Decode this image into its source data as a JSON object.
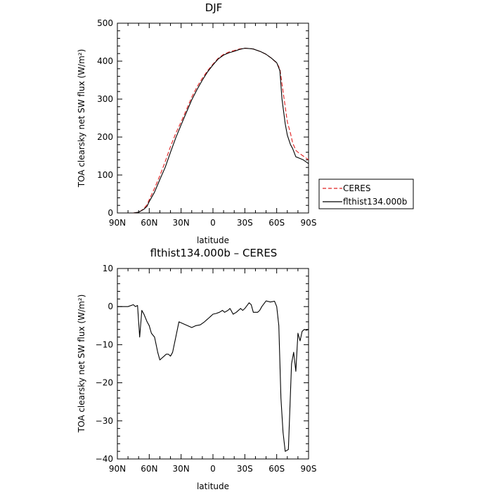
{
  "chart_data": [
    {
      "type": "line",
      "title": "DJF",
      "xlabel": "latitude",
      "ylabel": "TOA clearsky net SW flux (W/m²)",
      "xlim": [
        90,
        -90
      ],
      "ylim": [
        0,
        500
      ],
      "x_ticks": [
        90,
        60,
        30,
        0,
        -30,
        -60,
        -90
      ],
      "x_tick_labels": [
        "90N",
        "60N",
        "30N",
        "0",
        "30S",
        "60S",
        "90S"
      ],
      "y_ticks": [
        0,
        100,
        200,
        300,
        400,
        500
      ],
      "y_tick_labels": [
        "0",
        "100",
        "200",
        "300",
        "400",
        "500"
      ],
      "legend_position": "right",
      "series": [
        {
          "name": "CERES",
          "color": "#e02020",
          "dash": "dashed",
          "x": [
            75,
            70,
            68,
            65,
            62,
            60,
            55,
            50,
            45,
            40,
            35,
            30,
            25,
            20,
            15,
            10,
            5,
            0,
            -5,
            -10,
            -15,
            -20,
            -25,
            -30,
            -35,
            -38,
            -40,
            -45,
            -50,
            -55,
            -60,
            -63,
            -65,
            -68,
            -70,
            -73,
            -75,
            -78,
            -80,
            -85,
            -90
          ],
          "y": [
            0,
            2,
            5,
            12,
            22,
            35,
            65,
            98,
            135,
            175,
            210,
            240,
            272,
            305,
            332,
            355,
            375,
            392,
            408,
            418,
            424,
            428,
            432,
            434,
            433,
            432,
            430,
            425,
            418,
            408,
            395,
            380,
            340,
            280,
            240,
            210,
            185,
            165,
            160,
            150,
            140
          ]
        },
        {
          "name": "flthist134.000b",
          "color": "#000000",
          "dash": "solid",
          "x": [
            75,
            70,
            68,
            65,
            62,
            60,
            55,
            50,
            45,
            40,
            35,
            30,
            25,
            20,
            15,
            10,
            5,
            0,
            -5,
            -10,
            -15,
            -20,
            -25,
            -30,
            -35,
            -38,
            -40,
            -45,
            -50,
            -55,
            -60,
            -63,
            -65,
            -68,
            -70,
            -73,
            -75,
            -78,
            -80,
            -85,
            -90
          ],
          "y": [
            0,
            2,
            5,
            10,
            18,
            30,
            55,
            88,
            120,
            160,
            198,
            232,
            265,
            298,
            325,
            350,
            372,
            390,
            406,
            416,
            422,
            426,
            431,
            434,
            433,
            432,
            430,
            425,
            418,
            408,
            396,
            375,
            300,
            235,
            205,
            180,
            170,
            148,
            146,
            140,
            130
          ]
        }
      ]
    },
    {
      "type": "line",
      "title": "flthist134.000b – CERES",
      "xlabel": "latitude",
      "ylabel": "TOA clearsky net SW flux (W/m²)",
      "xlim": [
        90,
        -90
      ],
      "ylim": [
        -40,
        10
      ],
      "x_ticks": [
        90,
        60,
        30,
        0,
        -30,
        -60,
        -90
      ],
      "x_tick_labels": [
        "90N",
        "60N",
        "30N",
        "0",
        "30S",
        "60S",
        "90S"
      ],
      "y_ticks": [
        10,
        0,
        -10,
        -20,
        -30,
        -40
      ],
      "y_tick_labels": [
        "10",
        "0",
        "−10",
        "−20",
        "−30",
        "−40"
      ],
      "series": [
        {
          "name": "flthist134.000b – CERES",
          "color": "#000000",
          "dash": "solid",
          "x": [
            90,
            80,
            75,
            73,
            71,
            69,
            67,
            65,
            62,
            60,
            58,
            55,
            52,
            50,
            46,
            44,
            42,
            40,
            38,
            35,
            32,
            28,
            24,
            20,
            16,
            12,
            8,
            6,
            4,
            2,
            0,
            -3,
            -6,
            -9,
            -11,
            -14,
            -16,
            -19,
            -22,
            -24,
            -26,
            -28,
            -30,
            -34,
            -36,
            -38,
            -42,
            -44,
            -46,
            -50,
            -54,
            -58,
            -60,
            -62,
            -64,
            -66,
            -68,
            -71,
            -72,
            -74,
            -76,
            -78,
            -80,
            -82,
            -84,
            -86,
            -88,
            -90
          ],
          "y": [
            0,
            0,
            0.5,
            0,
            0.3,
            -8,
            -1,
            -2,
            -4,
            -5,
            -7,
            -8,
            -12,
            -14,
            -13,
            -12.5,
            -12.5,
            -13,
            -12,
            -8,
            -4,
            -4.5,
            -5,
            -5.5,
            -5,
            -4.8,
            -4,
            -3.5,
            -3,
            -2.5,
            -2,
            -1.8,
            -1.5,
            -1,
            -1.5,
            -1,
            -0.5,
            -2,
            -1.5,
            -1,
            -0.5,
            -1,
            -0.5,
            1,
            0.5,
            -1.5,
            -1.5,
            -1,
            0,
            1.5,
            1.2,
            1.4,
            0,
            -5,
            -24,
            -33,
            -38,
            -37.5,
            -30,
            -15,
            -12,
            -17,
            -7,
            -9,
            -6.5,
            -6,
            -6.2,
            -6
          ]
        }
      ]
    }
  ]
}
